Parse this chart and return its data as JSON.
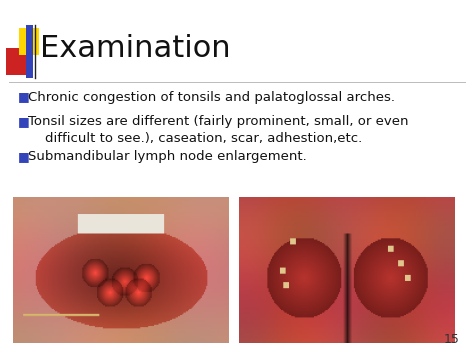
{
  "title": "Examination",
  "slide_number": "15",
  "background_color": "#ffffff",
  "title_color": "#111111",
  "title_fontsize": 22,
  "accent_yellow": "#FFD700",
  "accent_red": "#CC2222",
  "accent_blue": "#3344BB",
  "bullet_points": [
    "Chronic congestion of tonsils and palatoglossal arches.",
    "Tonsil sizes are different (fairly prominent, small, or even\n    difficult to see.), caseation, scar, adhestion,etc.",
    "Submandibular lymph node enlargement."
  ],
  "bullet_color": "#3344BB",
  "text_color": "#111111",
  "text_fontsize": 9.5,
  "divider_color": "#BBBBBB",
  "slide_num_color": "#333333",
  "slide_num_fontsize": 9
}
